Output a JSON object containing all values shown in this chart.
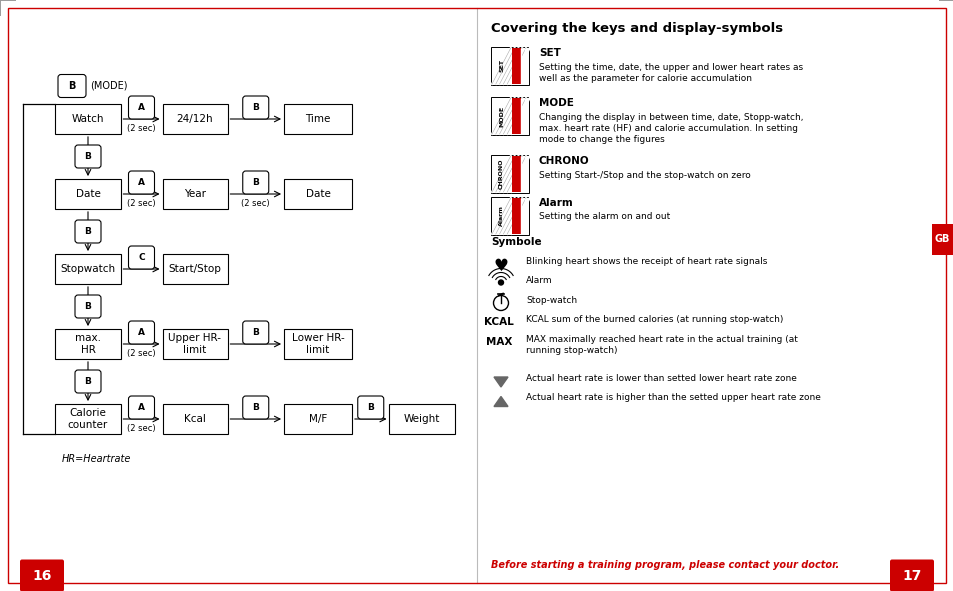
{
  "page_bg": "#ffffff",
  "border_color": "#cc0000",
  "page_width": 9.54,
  "page_height": 5.91,
  "page_num_left": "16",
  "page_num_right": "17",
  "page_num_bg": "#cc0000",
  "page_num_color": "#ffffff",
  "gb_label": "GB",
  "gb_bg": "#cc0000",
  "gb_color": "#ffffff",
  "right_title": "Covering the keys and display-symbols",
  "sections": [
    {
      "label": "SET",
      "label_bold": true,
      "desc": "Setting the time, date, the upper and lower heart rates as\nwell as the parameter for calorie accumulation"
    },
    {
      "label": "MODE",
      "label_bold": true,
      "desc": "Changing the display in between time, date, Stopp-watch,\nmax. heart rate (HF) and calorie accumulation. In setting\nmode to change the figures"
    },
    {
      "label": "CHRONO",
      "label_bold": true,
      "desc": "Setting Start-/Stop and the stop-watch on zero"
    },
    {
      "label": "Alarm",
      "label_bold": true,
      "desc": "Setting the alarm on and out"
    }
  ],
  "symbole_title": "Symbole",
  "symbole_items": [
    {
      "symbol": "heart",
      "desc": "Blinking heart shows the receipt of heart rate signals"
    },
    {
      "symbol": "alarm_wave",
      "desc": "Alarm"
    },
    {
      "symbol": "stopwatch",
      "desc": "Stop-watch"
    },
    {
      "symbol": "KCAL",
      "desc": "KCAL sum of the burned calories (at running stop-watch)"
    },
    {
      "symbol": "MAX",
      "desc": "MAX maximally reached heart rate in the actual training (at\nrunning stop-watch)"
    },
    {
      "symbol": "triangle_down",
      "desc": "Actual heart rate is lower than setted lower heart rate zone"
    },
    {
      "symbol": "triangle_up",
      "desc": "Actual heart rate is higher than the setted upper heart rate zone"
    }
  ],
  "footer": "Before starting a training program, please contact your doctor.",
  "footer_color": "#cc0000",
  "flowchart_note": "HR=Heartrate",
  "flowchart_rows": [
    {
      "main_box": "Watch",
      "btn_label": "A",
      "btn_sub": "(2 sec)",
      "mid_box": "24/12h",
      "right_btn": "B",
      "right_btn_sub": "",
      "end_box": "Time",
      "extra_btn": null,
      "extra_box": null,
      "top_btn": "B",
      "top_label": "(MODE)"
    },
    {
      "main_box": "Date",
      "btn_label": "A",
      "btn_sub": "(2 sec)",
      "mid_box": "Year",
      "right_btn": "B",
      "right_btn_sub": "(2 sec)",
      "end_box": "Date",
      "extra_btn": null,
      "extra_box": null,
      "top_btn": "B",
      "top_label": null
    },
    {
      "main_box": "Stopwatch",
      "btn_label": "C",
      "btn_sub": "",
      "mid_box": "Start/Stop",
      "right_btn": null,
      "right_btn_sub": "",
      "end_box": null,
      "extra_btn": null,
      "extra_box": null,
      "top_btn": "B",
      "top_label": null
    },
    {
      "main_box": "max.\nHR",
      "btn_label": "A",
      "btn_sub": "(2 sec)",
      "mid_box": "Upper HR-\nlimit",
      "right_btn": "B",
      "right_btn_sub": "",
      "end_box": "Lower HR-\nlimit",
      "extra_btn": null,
      "extra_box": null,
      "top_btn": "B",
      "top_label": null
    },
    {
      "main_box": "Calorie\ncounter",
      "btn_label": "A",
      "btn_sub": "(2 sec)",
      "mid_box": "Kcal",
      "right_btn": "B",
      "right_btn_sub": "",
      "end_box": "M/F",
      "extra_btn": "B",
      "extra_box": "Weight",
      "top_btn": "B",
      "top_label": null
    }
  ]
}
